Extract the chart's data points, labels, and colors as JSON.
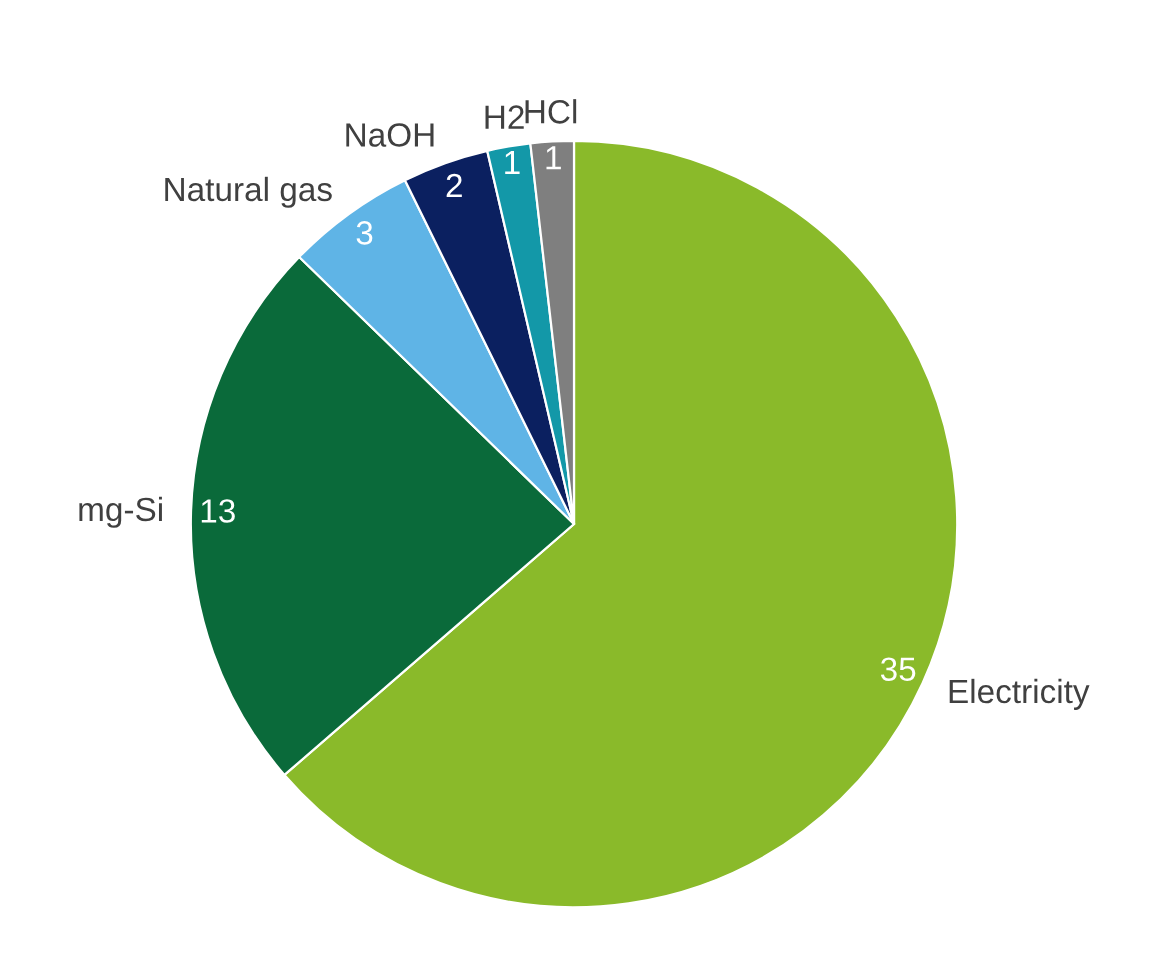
{
  "chart_data": {
    "type": "pie",
    "categories": [
      "Electricity",
      "mg-Si",
      "Natural gas",
      "NaOH",
      "H2",
      "HCl"
    ],
    "values": [
      35,
      13,
      3,
      2,
      1,
      1
    ],
    "colors": [
      "#8aba2a",
      "#0a6a3a",
      "#5fb4e6",
      "#0b2060",
      "#1398a8",
      "#7f7f7f"
    ],
    "data_labels": true,
    "legend": false
  }
}
